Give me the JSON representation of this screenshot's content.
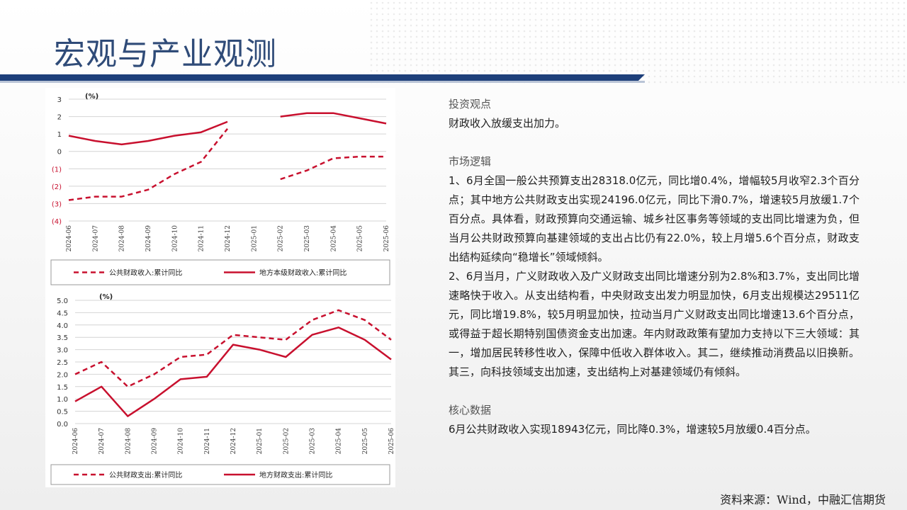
{
  "page": {
    "title": "宏观与产业观测",
    "source": "资料来源：Wind，中融汇信期货"
  },
  "text": {
    "s1_title": "投资观点",
    "s1_body": "财政收入放缓支出加力。",
    "s2_title": "市场逻辑",
    "s2_p1": "1、6月全国一般公共预算支出28318.0亿元，同比增0.4%，增幅较5月收窄2.3个百分点；其中地方公共财政支出实现24196.0亿元，同比下滑0.7%，增速较5月放缓1.7个百分点。具体看，财政预算向交通运输、城乡社区事务等领域的支出同比增速为负，但当月公共财政预算向基建领域的支出占比仍有22.0%，较上月增5.6个百分点，财政支出结构延续向“稳增长”领域倾斜。",
    "s2_p2": "2、6月当月，广义财政收入及广义财政支出同比增速分别为2.8%和3.7%，支出同比增速略快于收入。从支出结构看，中央财政支出发力明显加快，6月支出规模达29511亿元，同比增19.8%，较5月明显加快，拉动当月广义财政支出同比增速13.6个百分点，或得益于超长期特别国债资金支出加速。年内财政政策有望加力支持以下三大领域：其一，增加居民转移性收入，保障中低收入群体收入。其二，继续推动消费品以旧换新。其三，向科技领域支出加速，支出结构上对基建领域仍有倾斜。",
    "s3_title": "核心数据",
    "s3_body": "6月公共财政收入实现18943亿元，同比降0.3%，增速较5月放缓0.4百分点。"
  },
  "colors": {
    "series": "#c8102e",
    "title": "#2f4b78",
    "band": "#1d3f7a"
  },
  "chart_data": [
    {
      "type": "line",
      "unit": "(%)",
      "categories": [
        "2024-06",
        "2024-07",
        "2024-08",
        "2024-09",
        "2024-10",
        "2024-11",
        "2024-12",
        "2025-01",
        "2025-02",
        "2025-03",
        "2025-04",
        "2025-05",
        "2025-06"
      ],
      "ylim": [
        -4,
        3
      ],
      "yticks": [
        3,
        2,
        1,
        0,
        -1,
        -2,
        -3,
        -4
      ],
      "ytick_labels": [
        "3",
        "2",
        "1",
        "0",
        "(1)",
        "(2)",
        "(3)",
        "(4)"
      ],
      "series": [
        {
          "name": "公共财政收入:累计同比",
          "style": "dashed",
          "values": [
            -2.8,
            -2.6,
            -2.6,
            -2.2,
            -1.3,
            -0.6,
            1.3,
            null,
            -1.6,
            -1.1,
            -0.4,
            -0.3,
            -0.3
          ]
        },
        {
          "name": "地方本级财政收入:累计同比",
          "style": "solid",
          "values": [
            0.9,
            0.6,
            0.4,
            0.6,
            0.9,
            1.1,
            1.7,
            null,
            2.0,
            2.2,
            2.2,
            1.9,
            1.6
          ]
        }
      ],
      "grid": true,
      "legend": "bottom"
    },
    {
      "type": "line",
      "unit": "(%)",
      "categories": [
        "2024-06",
        "2024-07",
        "2024-08",
        "2024-09",
        "2024-10",
        "2024-11",
        "2024-12",
        "2025-01",
        "2025-02",
        "2025-03",
        "2025-04",
        "2025-05",
        "2025-06"
      ],
      "ylim": [
        0,
        5
      ],
      "yticks": [
        5,
        4.5,
        4,
        3.5,
        3,
        2.5,
        2,
        1.5,
        1,
        0.5,
        0
      ],
      "ytick_labels": [
        "5.0",
        "4.5",
        "4.0",
        "3.5",
        "3.0",
        "2.5",
        "2.0",
        "1.5",
        "1.0",
        "0.5",
        "0.0"
      ],
      "series": [
        {
          "name": "公共财政支出:累计同比",
          "style": "dashed",
          "values": [
            2.0,
            2.5,
            1.5,
            2.0,
            2.7,
            2.8,
            3.6,
            3.5,
            3.4,
            4.2,
            4.6,
            4.2,
            3.4
          ]
        },
        {
          "name": "地方财政支出:累计同比",
          "style": "solid",
          "values": [
            0.9,
            1.5,
            0.3,
            1.0,
            1.8,
            1.9,
            3.2,
            3.0,
            2.7,
            3.6,
            3.9,
            3.4,
            2.6
          ]
        }
      ],
      "grid": true,
      "legend": "bottom"
    }
  ]
}
